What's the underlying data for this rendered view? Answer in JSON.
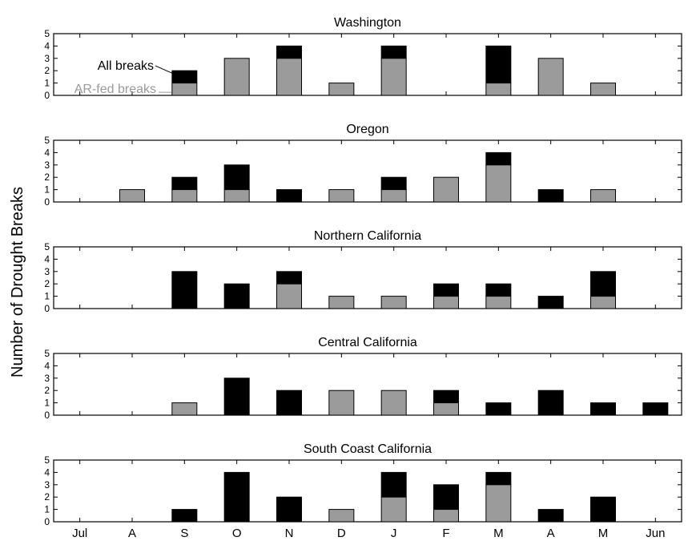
{
  "chart_data": {
    "type": "bar",
    "stacked": true,
    "ylabel": "Number of Drought Breaks",
    "categories": [
      "Jul",
      "A",
      "S",
      "O",
      "N",
      "D",
      "J",
      "F",
      "M",
      "A",
      "M",
      "Jun"
    ],
    "ylim": [
      0,
      5
    ],
    "yticks": [
      0,
      1,
      2,
      3,
      4,
      5
    ],
    "series_names": [
      "AR-fed breaks",
      "All breaks"
    ],
    "colors": {
      "ar_fed": "#9b9b9b",
      "all": "#000000"
    },
    "annotations": {
      "all": "All breaks",
      "ar": "AR-fed breaks"
    },
    "panels": [
      {
        "title": "Washington",
        "all": [
          0,
          0,
          2,
          3,
          4,
          1,
          4,
          0,
          4,
          3,
          1,
          0
        ],
        "ar_fed": [
          0,
          0,
          1,
          3,
          3,
          1,
          3,
          0,
          1,
          3,
          1,
          0
        ]
      },
      {
        "title": "Oregon",
        "all": [
          0,
          1,
          2,
          3,
          1,
          1,
          2,
          2,
          4,
          1,
          1,
          0
        ],
        "ar_fed": [
          0,
          1,
          1,
          1,
          0,
          1,
          1,
          2,
          3,
          0,
          1,
          0
        ]
      },
      {
        "title": "Northern California",
        "all": [
          0,
          0,
          3,
          2,
          3,
          1,
          1,
          2,
          2,
          1,
          3,
          0
        ],
        "ar_fed": [
          0,
          0,
          0,
          0,
          2,
          1,
          1,
          1,
          1,
          0,
          1,
          0
        ]
      },
      {
        "title": "Central California",
        "all": [
          0,
          0,
          1,
          3,
          2,
          2,
          2,
          2,
          1,
          2,
          1,
          1
        ],
        "ar_fed": [
          0,
          0,
          1,
          0,
          0,
          2,
          2,
          1,
          0,
          0,
          0,
          0
        ]
      },
      {
        "title": "South Coast California",
        "all": [
          0,
          0,
          1,
          4,
          2,
          1,
          4,
          3,
          4,
          1,
          2,
          0
        ],
        "ar_fed": [
          0,
          0,
          0,
          0,
          0,
          1,
          2,
          1,
          3,
          0,
          0,
          0
        ]
      }
    ]
  }
}
